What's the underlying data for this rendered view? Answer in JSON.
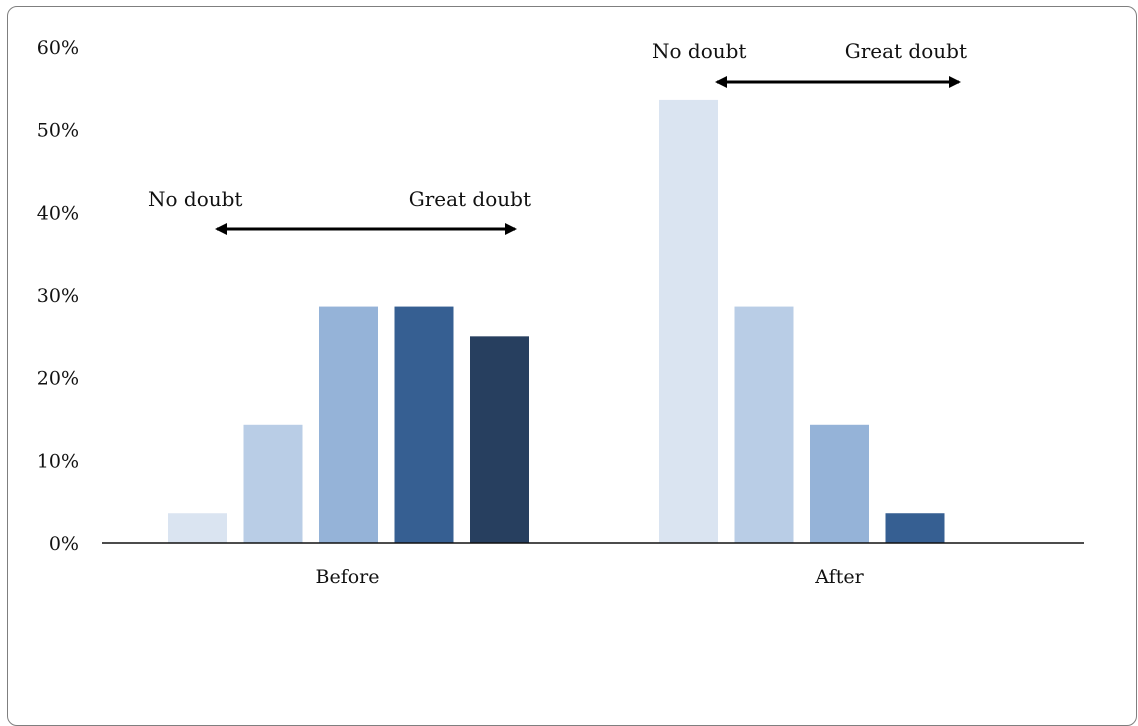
{
  "chart_data": {
    "type": "bar",
    "title": "",
    "xlabel": "",
    "ylabel": "",
    "ylim": [
      0,
      60
    ],
    "y_tick_values": [
      0,
      10,
      20,
      30,
      40,
      50,
      60
    ],
    "y_tick_labels": [
      "0%",
      "10%",
      "20%",
      "30%",
      "40%",
      "50%",
      "60%"
    ],
    "grid": false,
    "legend": "none",
    "groups": [
      {
        "label": "Before",
        "values": [
          3.6,
          14.3,
          28.6,
          28.6,
          25.0
        ],
        "colors": [
          "#dae4f1",
          "#b9cde6",
          "#95b3d8",
          "#365f92",
          "#273f5f"
        ]
      },
      {
        "label": "After",
        "values": [
          53.6,
          28.6,
          14.3,
          3.6
        ],
        "colors": [
          "#dae4f1",
          "#b9cde6",
          "#95b3d8",
          "#365f92"
        ]
      }
    ],
    "annotations": [
      {
        "group": "Before",
        "left_label": "No doubt",
        "right_label": "Great doubt"
      },
      {
        "group": "After",
        "left_label": "No doubt",
        "right_label": "Great doubt"
      }
    ]
  }
}
